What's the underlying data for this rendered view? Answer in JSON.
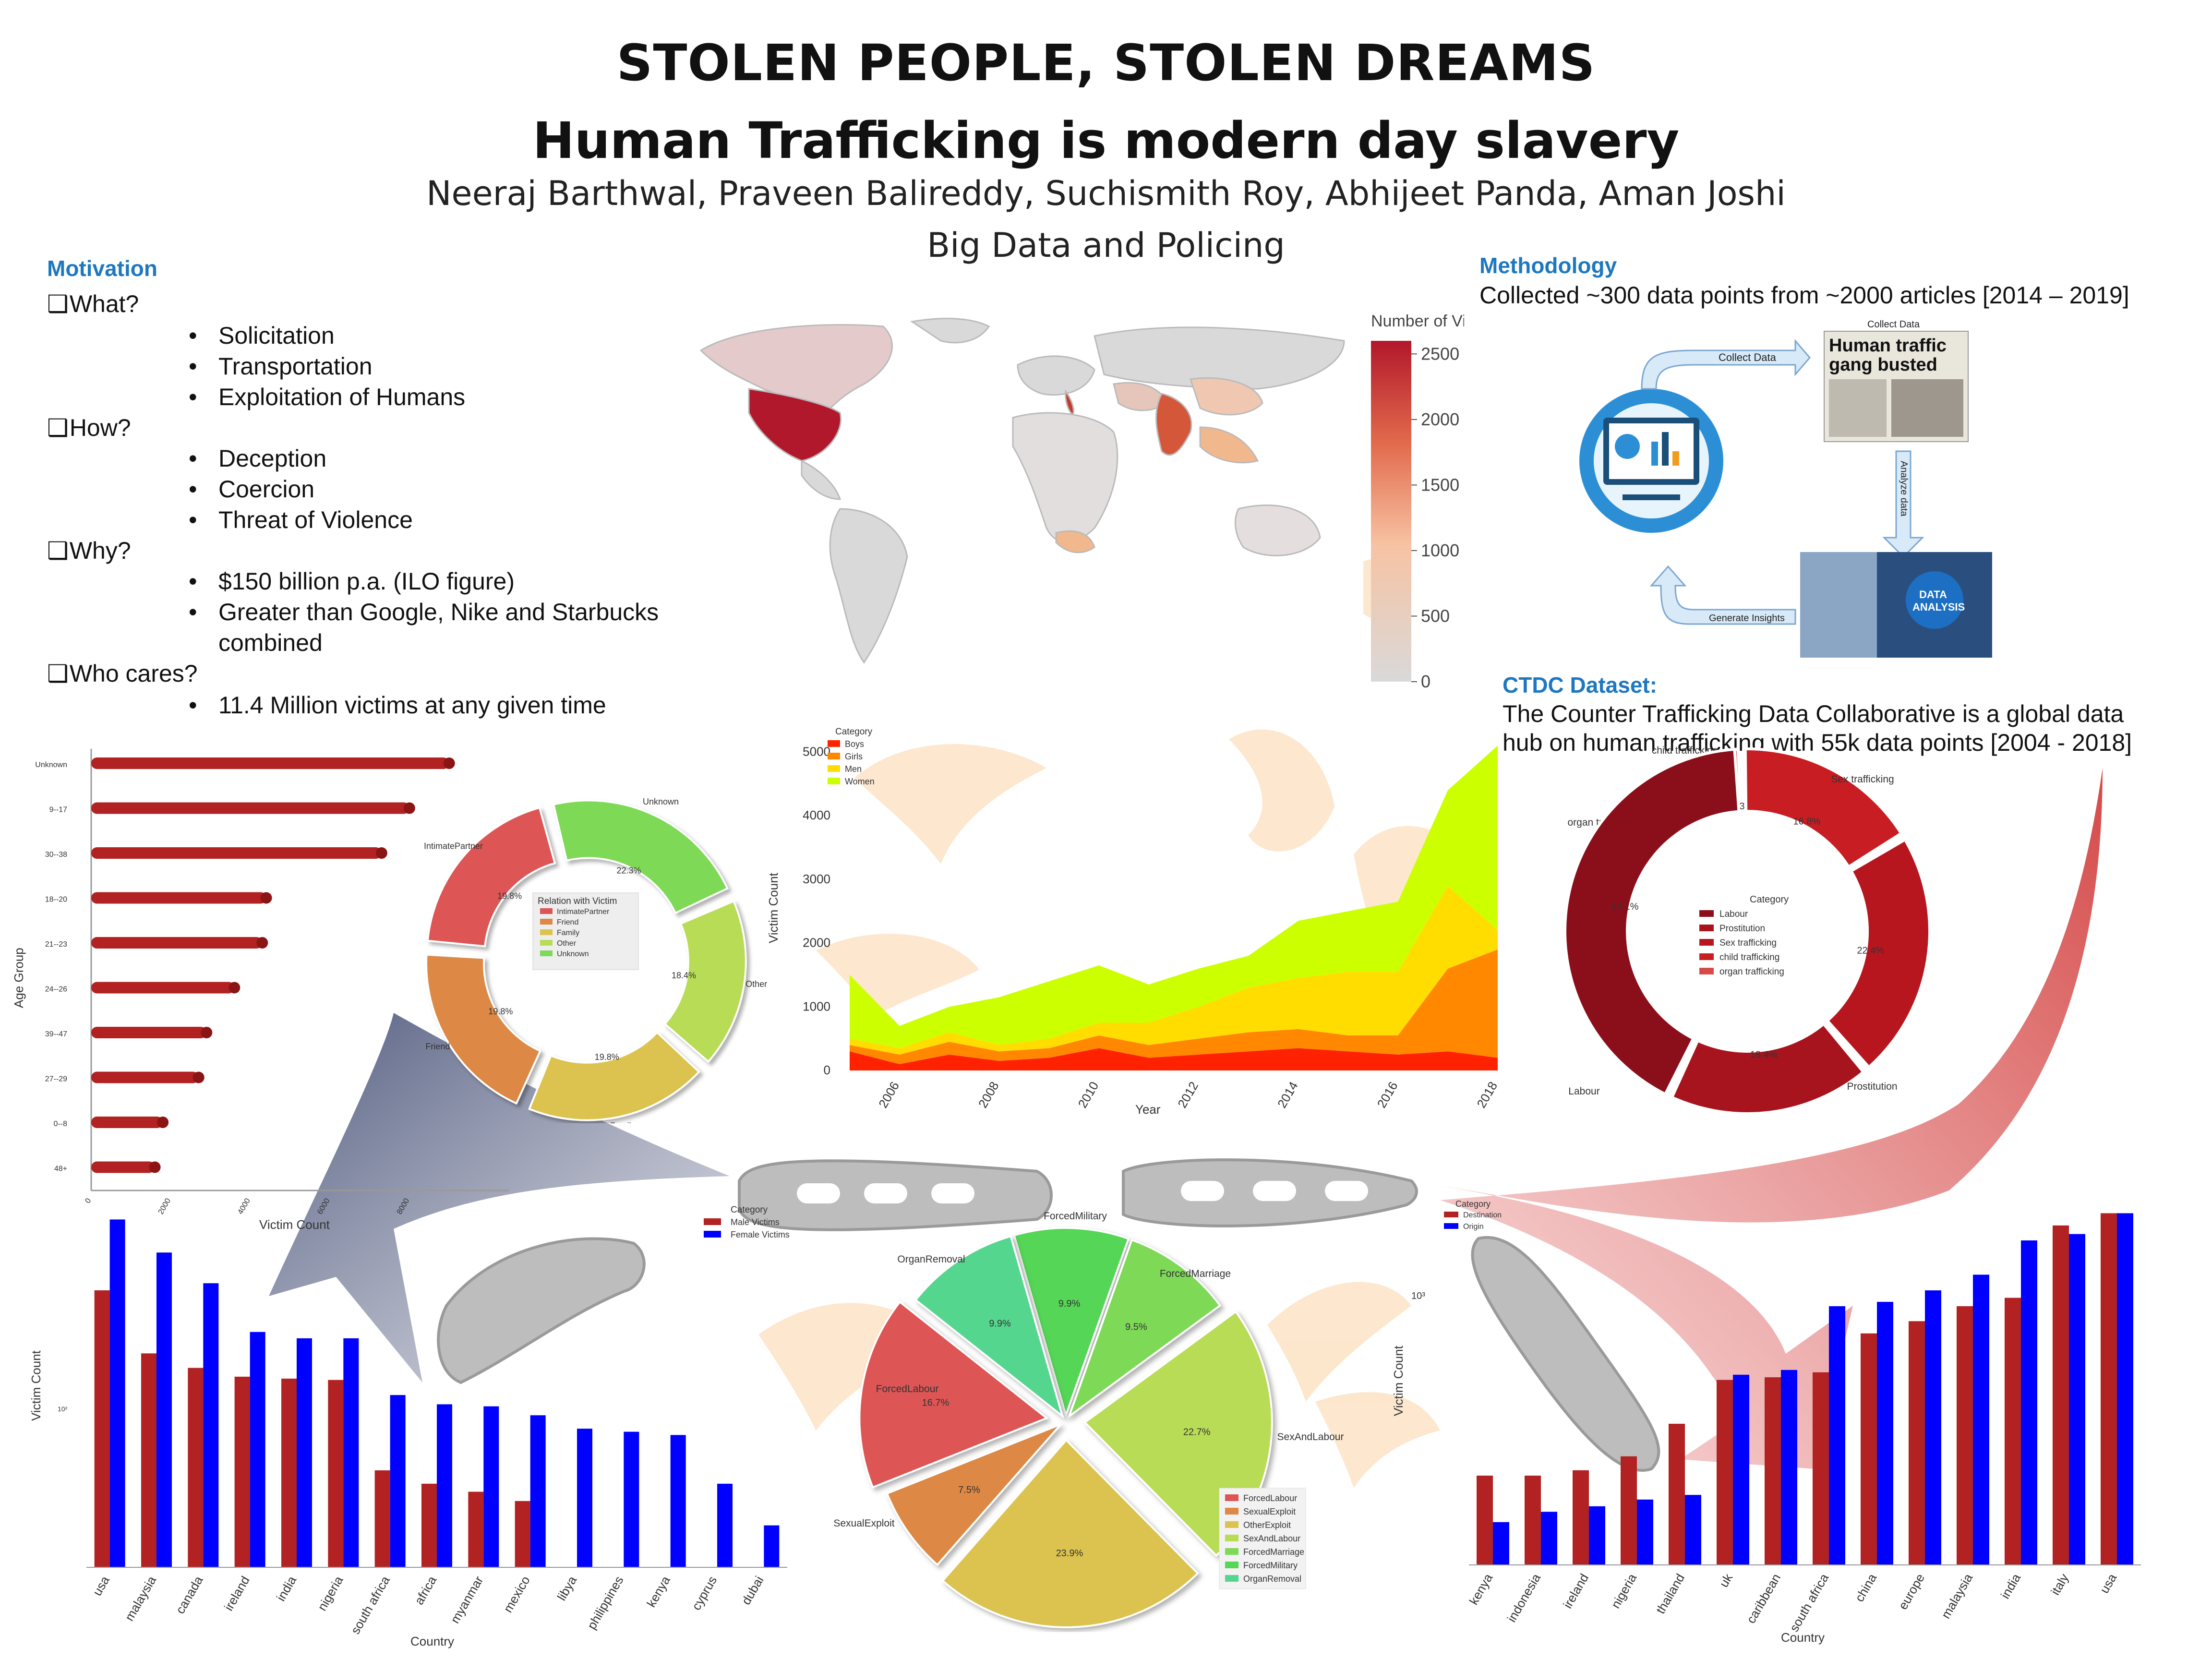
{
  "header": {
    "title": "STOLEN PEOPLE, STOLEN DREAMS",
    "subtitle": "Human Trafficking is modern day slavery",
    "authors": "Neeraj Barthwal, Praveen Balireddy, Suchismith Roy, Abhijeet Panda, Aman Joshi",
    "course": "Big Data and Policing"
  },
  "motivation": {
    "heading": "Motivation",
    "what": "What?",
    "what_items": [
      "Solicitation",
      "Transportation",
      "Exploitation of Humans"
    ],
    "how": "How?",
    "how_items": [
      "Deception",
      "Coercion",
      "Threat of Violence"
    ],
    "why": "Why?",
    "why_items": [
      "$150 billion p.a. (ILO figure)",
      "Greater than Google, Nike and Starbucks",
      "combined"
    ],
    "who": "Who cares?",
    "who_items": [
      "11.4 Million victims at any given time"
    ]
  },
  "methodology": {
    "heading": "Methodology",
    "text": "Collected ~300 data points from ~2000 articles [2014 – 2019]",
    "collect_data": "Collect Data",
    "collect_data_small": "Collect Data",
    "analyze_data": "Analyze data",
    "generate_insights": "Generate Insights",
    "newspaper_headline_1": "Human traffic",
    "newspaper_headline_2": "gang busted",
    "data_analysis_1": "DATA",
    "data_analysis_2": "ANALYSIS"
  },
  "ctdc": {
    "heading": "CTDC Dataset:",
    "line1": "The Counter Trafficking Data Collaborative is a global data",
    "line2": "hub on human trafficking with 55k data points [2004 - 2018]"
  },
  "chart_data": [
    {
      "type": "choropleth",
      "colorbar_title": "Number of Victims",
      "colorbar_ticks": [
        0,
        500,
        1000,
        1500,
        2000,
        2500
      ],
      "colors": {
        "low": "#d9d9d9",
        "mid": "#f4a574",
        "high": "#b2182b"
      },
      "highlighted_regions": {
        "usa": 2500,
        "italy": 2300,
        "india": 1700,
        "canada": 400,
        "southeast_asia": 700,
        "australia": 200,
        "south_africa": 600
      }
    },
    {
      "type": "bar",
      "orientation": "horizontal",
      "ylabel": "Age Group",
      "xlabel": "Victim Count",
      "categories": [
        "Unknown",
        "9--17",
        "30--38",
        "18--20",
        "21--23",
        "24--26",
        "39--47",
        "27--29",
        "0--8",
        "48+"
      ],
      "values": [
        9000,
        8000,
        7300,
        4400,
        4300,
        3600,
        2900,
        2700,
        1800,
        1600
      ],
      "xticks": [
        0,
        2000,
        4000,
        6000,
        8000
      ],
      "color": "#b22222"
    },
    {
      "type": "pie",
      "style": "donut",
      "legend_title": "Relation with Victim",
      "labels": [
        "IntimatePartner",
        "Friend",
        "Family",
        "Other",
        "Unknown"
      ],
      "values": [
        19.8,
        19.8,
        19.8,
        18.4,
        22.3
      ],
      "colors": [
        "#dd5555",
        "#dd8844",
        "#dcc34f",
        "#b8dc55",
        "#7ed957"
      ]
    },
    {
      "type": "area",
      "stacked": true,
      "xlabel": "Year",
      "ylabel": "Victim Count",
      "legend_title": "Category",
      "x": [
        2005,
        2006,
        2007,
        2008,
        2009,
        2010,
        2011,
        2012,
        2013,
        2014,
        2015,
        2016,
        2017,
        2018
      ],
      "xticks": [
        2006,
        2008,
        2010,
        2012,
        2014,
        2016,
        2018
      ],
      "yticks": [
        0,
        1000,
        2000,
        3000,
        4000,
        5000
      ],
      "ylim": [
        0,
        5200
      ],
      "series": [
        {
          "name": "Boys",
          "color": "#ff2200",
          "values": [
            300,
            100,
            250,
            150,
            200,
            350,
            200,
            250,
            300,
            350,
            300,
            250,
            300,
            200
          ]
        },
        {
          "name": "Girls",
          "color": "#ff8800",
          "values": [
            100,
            150,
            200,
            150,
            150,
            200,
            200,
            250,
            300,
            300,
            250,
            300,
            1300,
            1700
          ]
        },
        {
          "name": "Men",
          "color": "#ffdd00",
          "values": [
            100,
            100,
            150,
            100,
            150,
            200,
            350,
            500,
            700,
            800,
            1000,
            1000,
            1300,
            300
          ]
        },
        {
          "name": "Women",
          "color": "#ccff00",
          "values": [
            1000,
            350,
            400,
            750,
            900,
            900,
            600,
            600,
            500,
            900,
            950,
            1100,
            1500,
            2900
          ]
        }
      ]
    },
    {
      "type": "pie",
      "style": "donut",
      "legend_title": "Category",
      "labels": [
        "Labour",
        "Prostitution",
        "Sex trafficking",
        "child trafficking",
        "organ trafficking"
      ],
      "values": [
        42.1,
        18.4,
        22.4,
        16.8,
        0.3
      ],
      "colors": [
        "#8b0f1a",
        "#a8141e",
        "#b8161e",
        "#c81e23",
        "#d84a4a"
      ]
    },
    {
      "type": "bar",
      "xlabel": "Country",
      "ylabel": "Victim Count",
      "yscale": "log",
      "ytick_label": "10²",
      "legend_title": "Category",
      "categories": [
        "usa",
        "malaysia",
        "canada",
        "ireland",
        "india",
        "nigeria",
        "south africa",
        "africa",
        "myanmar",
        "mexico",
        "libya",
        "philippines",
        "kenya",
        "cyprus",
        "dubai"
      ],
      "series": [
        {
          "name": "Male Victims",
          "color": "#b22222",
          "values": [
            400,
            140,
            110,
            95,
            92,
            90,
            20,
            16,
            14,
            12,
            0,
            0,
            0,
            0,
            0
          ]
        },
        {
          "name": "Female Victims",
          "color": "#0000ff",
          "values": [
            1300,
            750,
            450,
            200,
            180,
            180,
            70,
            60,
            58,
            50,
            40,
            38,
            36,
            16,
            8
          ]
        }
      ]
    },
    {
      "type": "pie",
      "style": "exploded",
      "labels": [
        "ForcedLabour",
        "SexualExploit",
        "OtherExploit",
        "SexAndLabour",
        "ForcedMarriage",
        "ForcedMilitary",
        "OrganRemoval"
      ],
      "values": [
        16.7,
        7.5,
        23.9,
        22.7,
        9.5,
        9.9,
        9.9
      ],
      "colors": [
        "#dd5555",
        "#dd8844",
        "#dcc34f",
        "#b8dc55",
        "#7ed957",
        "#55d657",
        "#55d68e"
      ]
    },
    {
      "type": "bar",
      "xlabel": "Country",
      "ylabel": "Victim Count",
      "yscale": "log",
      "ytick_label": "10³",
      "legend_title": "Category",
      "categories": [
        "kenya",
        "indonesia",
        "ireland",
        "nigeria",
        "thailand",
        "uk",
        "caribbean",
        "south africa",
        "china",
        "europe",
        "malaysia",
        "india",
        "italy",
        "usa"
      ],
      "series": [
        {
          "name": "Destination",
          "color": "#b22222",
          "values": [
            60,
            60,
            65,
            80,
            130,
            250,
            260,
            280,
            500,
            600,
            750,
            850,
            2500,
            3000
          ]
        },
        {
          "name": "Origin",
          "color": "#0000ff",
          "values": [
            30,
            35,
            38,
            42,
            45,
            270,
            290,
            750,
            800,
            950,
            1200,
            2000,
            2200,
            3000
          ]
        }
      ]
    }
  ]
}
